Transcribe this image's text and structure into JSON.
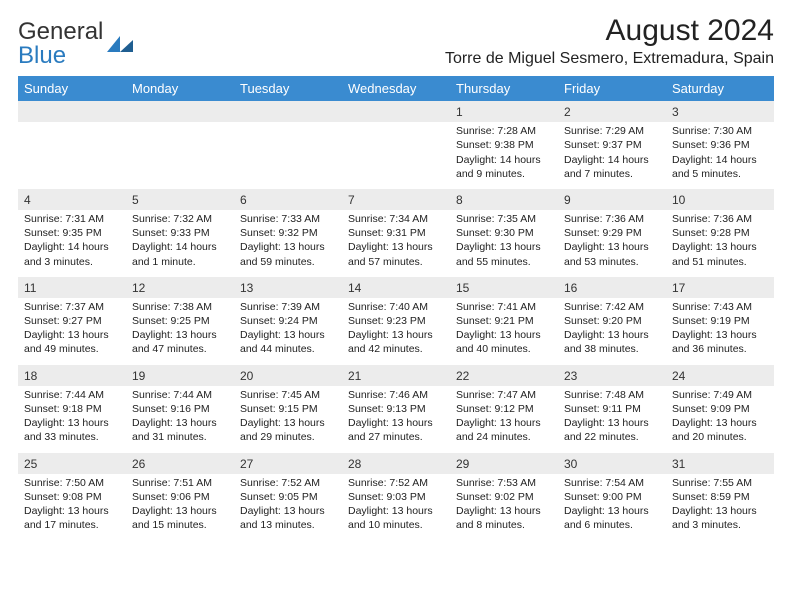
{
  "branding": {
    "logo_word1": "General",
    "logo_word2": "Blue",
    "logo_color_primary": "#2a7bbf",
    "logo_color_text": "#333333"
  },
  "header": {
    "title": "August 2024",
    "location": "Torre de Miguel Sesmero, Extremadura, Spain"
  },
  "colors": {
    "header_row_bg": "#3a8bd0",
    "header_row_text": "#ffffff",
    "daynum_bg": "#ececec",
    "page_bg": "#ffffff",
    "text": "#222222"
  },
  "weekdays": [
    "Sunday",
    "Monday",
    "Tuesday",
    "Wednesday",
    "Thursday",
    "Friday",
    "Saturday"
  ],
  "weeks": [
    [
      null,
      null,
      null,
      null,
      {
        "n": "1",
        "sr": "Sunrise: 7:28 AM",
        "ss": "Sunset: 9:38 PM",
        "dl": "Daylight: 14 hours and 9 minutes."
      },
      {
        "n": "2",
        "sr": "Sunrise: 7:29 AM",
        "ss": "Sunset: 9:37 PM",
        "dl": "Daylight: 14 hours and 7 minutes."
      },
      {
        "n": "3",
        "sr": "Sunrise: 7:30 AM",
        "ss": "Sunset: 9:36 PM",
        "dl": "Daylight: 14 hours and 5 minutes."
      }
    ],
    [
      {
        "n": "4",
        "sr": "Sunrise: 7:31 AM",
        "ss": "Sunset: 9:35 PM",
        "dl": "Daylight: 14 hours and 3 minutes."
      },
      {
        "n": "5",
        "sr": "Sunrise: 7:32 AM",
        "ss": "Sunset: 9:33 PM",
        "dl": "Daylight: 14 hours and 1 minute."
      },
      {
        "n": "6",
        "sr": "Sunrise: 7:33 AM",
        "ss": "Sunset: 9:32 PM",
        "dl": "Daylight: 13 hours and 59 minutes."
      },
      {
        "n": "7",
        "sr": "Sunrise: 7:34 AM",
        "ss": "Sunset: 9:31 PM",
        "dl": "Daylight: 13 hours and 57 minutes."
      },
      {
        "n": "8",
        "sr": "Sunrise: 7:35 AM",
        "ss": "Sunset: 9:30 PM",
        "dl": "Daylight: 13 hours and 55 minutes."
      },
      {
        "n": "9",
        "sr": "Sunrise: 7:36 AM",
        "ss": "Sunset: 9:29 PM",
        "dl": "Daylight: 13 hours and 53 minutes."
      },
      {
        "n": "10",
        "sr": "Sunrise: 7:36 AM",
        "ss": "Sunset: 9:28 PM",
        "dl": "Daylight: 13 hours and 51 minutes."
      }
    ],
    [
      {
        "n": "11",
        "sr": "Sunrise: 7:37 AM",
        "ss": "Sunset: 9:27 PM",
        "dl": "Daylight: 13 hours and 49 minutes."
      },
      {
        "n": "12",
        "sr": "Sunrise: 7:38 AM",
        "ss": "Sunset: 9:25 PM",
        "dl": "Daylight: 13 hours and 47 minutes."
      },
      {
        "n": "13",
        "sr": "Sunrise: 7:39 AM",
        "ss": "Sunset: 9:24 PM",
        "dl": "Daylight: 13 hours and 44 minutes."
      },
      {
        "n": "14",
        "sr": "Sunrise: 7:40 AM",
        "ss": "Sunset: 9:23 PM",
        "dl": "Daylight: 13 hours and 42 minutes."
      },
      {
        "n": "15",
        "sr": "Sunrise: 7:41 AM",
        "ss": "Sunset: 9:21 PM",
        "dl": "Daylight: 13 hours and 40 minutes."
      },
      {
        "n": "16",
        "sr": "Sunrise: 7:42 AM",
        "ss": "Sunset: 9:20 PM",
        "dl": "Daylight: 13 hours and 38 minutes."
      },
      {
        "n": "17",
        "sr": "Sunrise: 7:43 AM",
        "ss": "Sunset: 9:19 PM",
        "dl": "Daylight: 13 hours and 36 minutes."
      }
    ],
    [
      {
        "n": "18",
        "sr": "Sunrise: 7:44 AM",
        "ss": "Sunset: 9:18 PM",
        "dl": "Daylight: 13 hours and 33 minutes."
      },
      {
        "n": "19",
        "sr": "Sunrise: 7:44 AM",
        "ss": "Sunset: 9:16 PM",
        "dl": "Daylight: 13 hours and 31 minutes."
      },
      {
        "n": "20",
        "sr": "Sunrise: 7:45 AM",
        "ss": "Sunset: 9:15 PM",
        "dl": "Daylight: 13 hours and 29 minutes."
      },
      {
        "n": "21",
        "sr": "Sunrise: 7:46 AM",
        "ss": "Sunset: 9:13 PM",
        "dl": "Daylight: 13 hours and 27 minutes."
      },
      {
        "n": "22",
        "sr": "Sunrise: 7:47 AM",
        "ss": "Sunset: 9:12 PM",
        "dl": "Daylight: 13 hours and 24 minutes."
      },
      {
        "n": "23",
        "sr": "Sunrise: 7:48 AM",
        "ss": "Sunset: 9:11 PM",
        "dl": "Daylight: 13 hours and 22 minutes."
      },
      {
        "n": "24",
        "sr": "Sunrise: 7:49 AM",
        "ss": "Sunset: 9:09 PM",
        "dl": "Daylight: 13 hours and 20 minutes."
      }
    ],
    [
      {
        "n": "25",
        "sr": "Sunrise: 7:50 AM",
        "ss": "Sunset: 9:08 PM",
        "dl": "Daylight: 13 hours and 17 minutes."
      },
      {
        "n": "26",
        "sr": "Sunrise: 7:51 AM",
        "ss": "Sunset: 9:06 PM",
        "dl": "Daylight: 13 hours and 15 minutes."
      },
      {
        "n": "27",
        "sr": "Sunrise: 7:52 AM",
        "ss": "Sunset: 9:05 PM",
        "dl": "Daylight: 13 hours and 13 minutes."
      },
      {
        "n": "28",
        "sr": "Sunrise: 7:52 AM",
        "ss": "Sunset: 9:03 PM",
        "dl": "Daylight: 13 hours and 10 minutes."
      },
      {
        "n": "29",
        "sr": "Sunrise: 7:53 AM",
        "ss": "Sunset: 9:02 PM",
        "dl": "Daylight: 13 hours and 8 minutes."
      },
      {
        "n": "30",
        "sr": "Sunrise: 7:54 AM",
        "ss": "Sunset: 9:00 PM",
        "dl": "Daylight: 13 hours and 6 minutes."
      },
      {
        "n": "31",
        "sr": "Sunrise: 7:55 AM",
        "ss": "Sunset: 8:59 PM",
        "dl": "Daylight: 13 hours and 3 minutes."
      }
    ]
  ]
}
